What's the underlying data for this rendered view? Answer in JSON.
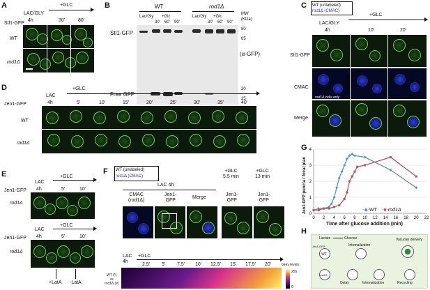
{
  "panels": {
    "A": {
      "label": "A",
      "gene": "Stl1-GFP",
      "condition_start": "LAC/GLY",
      "time_start": "4h",
      "treatment": "+GLC",
      "times": [
        "30'",
        "80'"
      ],
      "rows": [
        "WT",
        "rod1Δ"
      ]
    },
    "B": {
      "label": "B",
      "groups": [
        "WT",
        "rod1Δ"
      ],
      "lane_start": "Lac/Gly",
      "treatment": "+Glc",
      "lanes": [
        "30'",
        "60'",
        "90'"
      ],
      "mw_unit": "MW\n(KDa)",
      "mw_marks": [
        "80",
        "65",
        "30",
        "25"
      ],
      "band_top": "Stl1-GFP",
      "band_bottom": "Free GFP",
      "antibody": "(α-GFP)"
    },
    "C": {
      "label": "C",
      "legend_wt": "WT (unlabeled)",
      "legend_rod1": "rod1Δ (CMAC)",
      "condition_start": "LAC/GLY",
      "time_start": "4h",
      "treatment": "+GLC",
      "times": [
        "10'",
        "20'"
      ],
      "rows": [
        "Stl1-GFP",
        "CMAC",
        "Merge"
      ],
      "note": "rod1Δ cells only"
    },
    "D": {
      "label": "D",
      "gene": "Jen1-GFP",
      "condition_start": "LAC",
      "time_start": "4h",
      "treatment": "+GLC",
      "times": [
        "5'",
        "10'",
        "15'",
        "20'",
        "25'",
        "30'",
        "35'",
        "40'"
      ],
      "rows": [
        "WT",
        "rod1Δ"
      ]
    },
    "E": {
      "label": "E",
      "gene": "Jen1-GFP",
      "condition_start": "LAC",
      "time_start": "4h",
      "treatment": "+GLC",
      "times": [
        "5'",
        "10'"
      ],
      "rows": [
        "rod1Δ",
        "rod1Δ"
      ],
      "lat_plus": "+LatA",
      "lat_minus": "-LatA"
    },
    "F": {
      "label": "F",
      "legend_wt": "WT (unlabeled)",
      "legend_rod1": "rod1Δ (CMAC)",
      "header": "LAC 4h",
      "cols": [
        "CMAC\n(rod1Δ)",
        "Jen1-\nGFP",
        "Merge"
      ],
      "glc1": "+GLC\n5.5 min",
      "glc2": "+GLC\n13 min",
      "glc_col": "Jen1-\nGFP",
      "lac": "LAC\n4h",
      "treatment": "+GLC",
      "times": [
        "2.5'",
        "5'",
        "7.5'",
        "10'",
        "12.5'",
        "15'",
        "17.5'",
        "20'"
      ],
      "row_label": "WT (*)\nvs\nrod1Δ (#)",
      "scale_label": "Grey levels",
      "scale_max": "255",
      "scale_min": "0"
    },
    "G": {
      "label": "G",
      "ylabel": "Jen1-GFP puncta / focal plan",
      "xlabel": "Time after glucose addition (min)",
      "legend_wt": "WT",
      "legend_rod1": "rod1Δ"
    },
    "H": {
      "label": "H",
      "lactate": "Lactate",
      "glucose": "Glucose",
      "jen1": "Jen1-GFP",
      "wt": "WT",
      "rod1": "rod1Δ",
      "internalization": "Internalization",
      "vacuolar": "Vacuolar delivery",
      "delay": "Delay",
      "internalization2": "Internalization",
      "recycling": "Recycling"
    }
  },
  "colors": {
    "wt_line": "#5b8fc7",
    "rod1_line": "#c0504d"
  },
  "chart_data": {
    "type": "line",
    "xlabel": "Time after glucose addition (min)",
    "ylabel": "Jen1-GFP puncta / focal plan",
    "xlim": [
      0,
      22
    ],
    "ylim": [
      0,
      4
    ],
    "xticks": [
      0,
      2,
      4,
      6,
      8,
      10,
      12,
      14,
      16,
      18,
      20,
      22
    ],
    "yticks": [
      0,
      1,
      2,
      3,
      4
    ],
    "series": [
      {
        "name": "WT",
        "x": [
          0,
          1,
          2,
          3,
          3.5,
          4,
          4.5,
          5,
          5.5,
          6,
          6.5,
          7,
          7.5,
          8,
          10,
          15,
          20
        ],
        "y": [
          0.2,
          0.3,
          0.3,
          0.4,
          0.6,
          1.0,
          1.6,
          2.2,
          2.6,
          3.0,
          3.4,
          3.6,
          3.7,
          3.6,
          3.5,
          2.7,
          1.6
        ]
      },
      {
        "name": "rod1Δ",
        "x": [
          0,
          1,
          2,
          3,
          4,
          5,
          6,
          6.5,
          7,
          7.5,
          8,
          8.5,
          10,
          15,
          20
        ],
        "y": [
          0.2,
          0.2,
          0.3,
          0.3,
          0.4,
          0.5,
          0.9,
          1.3,
          2.0,
          2.3,
          2.6,
          2.9,
          3.0,
          3.5,
          2.3
        ]
      }
    ]
  }
}
